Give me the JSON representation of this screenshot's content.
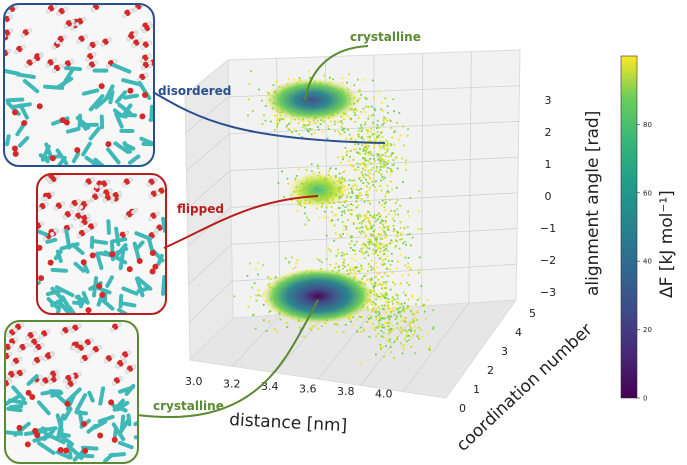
{
  "chart_data": {
    "type": "scatter3d",
    "title": "",
    "xlabel": "distance [nm]",
    "ylabel": "coordination number",
    "zlabel": "alignment angle [rad]",
    "xlim": [
      2.9,
      4.1
    ],
    "ylim": [
      0,
      6
    ],
    "zlim": [
      -3.5,
      3.5
    ],
    "x_ticks": [
      "3.0",
      "3.2",
      "3.4",
      "3.6",
      "3.8",
      "4.0"
    ],
    "y_ticks": [
      "0",
      "1",
      "2",
      "3",
      "4",
      "5"
    ],
    "z_ticks": [
      "3",
      "2",
      "1",
      "0",
      "−1",
      "−2",
      "−3"
    ],
    "colorbar": {
      "label": "ΔF [kJ mol⁻¹]",
      "ticks": [
        "0",
        "20",
        "40",
        "60",
        "80"
      ],
      "min": 0,
      "max": 100
    },
    "basins": [
      {
        "name": "crystalline",
        "distance": 3.55,
        "coordination": 3.0,
        "angle": 2.8,
        "min_dF": 25
      },
      {
        "name": "flipped",
        "distance": 3.5,
        "coordination": 2.5,
        "angle": 0.2,
        "min_dF": 60
      },
      {
        "name": "crystalline",
        "distance": 3.6,
        "coordination": 2.5,
        "angle": -3.0,
        "min_dF": 5
      }
    ]
  },
  "annotations": {
    "top": "crystalline",
    "disordered": "disordered",
    "flipped": "flipped",
    "bottom": "crystalline"
  },
  "colors": {
    "disordered": "#2a4f8f",
    "flipped": "#b81c1c",
    "crystalline": "#5a8a32"
  }
}
